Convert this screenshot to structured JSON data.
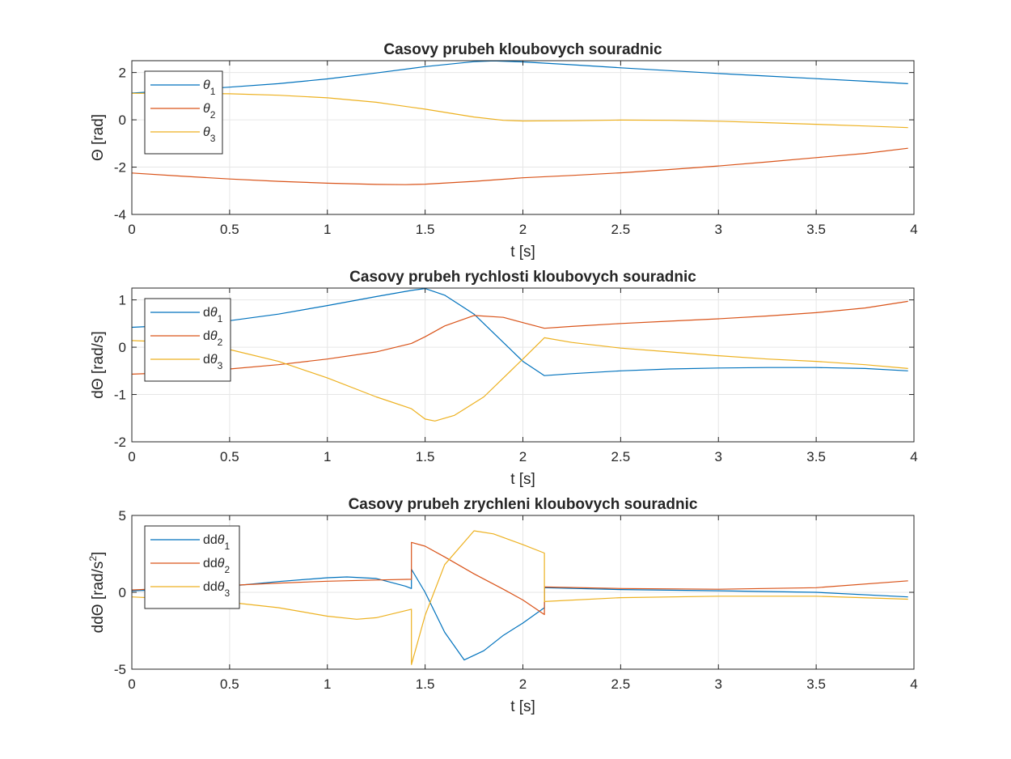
{
  "figure": {
    "colors": {
      "series1": "#0072BD",
      "series2": "#D95319",
      "series3": "#EDB120",
      "grid": "#e6e6e6",
      "axis": "#262626"
    }
  },
  "chart_data": [
    {
      "type": "line",
      "title": "Casovy prubeh kloubovych souradnic",
      "xlabel": "t [s]",
      "ylabel": "Θ [rad]",
      "ylabel_parts": {
        "prefix": "",
        "sym": "Θ",
        "unit": "[rad]",
        "sup": ""
      },
      "xlim": [
        0,
        4
      ],
      "ylim": [
        -4,
        2.5
      ],
      "xticks": [
        "0",
        "0.5",
        "1",
        "1.5",
        "2",
        "2.5",
        "3",
        "3.5",
        "4"
      ],
      "yticks": [
        "2",
        "0",
        "-2",
        "-4"
      ],
      "ytick_values": [
        2,
        0,
        -2,
        -4
      ],
      "grid": true,
      "legend_position": "top-left",
      "series": [
        {
          "name": "θ1",
          "name_prefix": "",
          "name_sub": "1",
          "color": "#0072BD",
          "x": [
            0,
            0.25,
            0.5,
            0.75,
            1.0,
            1.25,
            1.5,
            1.75,
            1.85,
            2.0,
            2.25,
            2.5,
            2.75,
            3.0,
            3.25,
            3.5,
            3.75,
            3.97
          ],
          "y": [
            1.13,
            1.25,
            1.38,
            1.53,
            1.73,
            1.98,
            2.25,
            2.46,
            2.49,
            2.45,
            2.33,
            2.2,
            2.08,
            1.96,
            1.85,
            1.74,
            1.63,
            1.53
          ]
        },
        {
          "name": "θ2",
          "name_prefix": "",
          "name_sub": "2",
          "color": "#D95319",
          "x": [
            0,
            0.25,
            0.5,
            0.75,
            1.0,
            1.25,
            1.4,
            1.5,
            1.75,
            2.0,
            2.25,
            2.5,
            2.75,
            3.0,
            3.25,
            3.5,
            3.75,
            3.97
          ],
          "y": [
            -2.25,
            -2.38,
            -2.5,
            -2.6,
            -2.68,
            -2.73,
            -2.74,
            -2.72,
            -2.6,
            -2.45,
            -2.35,
            -2.24,
            -2.1,
            -1.95,
            -1.78,
            -1.6,
            -1.42,
            -1.2
          ]
        },
        {
          "name": "θ3",
          "name_prefix": "",
          "name_sub": "3",
          "color": "#EDB120",
          "x": [
            0,
            0.25,
            0.5,
            0.75,
            1.0,
            1.25,
            1.5,
            1.75,
            1.9,
            2.0,
            2.25,
            2.5,
            2.75,
            3.0,
            3.25,
            3.5,
            3.75,
            3.97
          ],
          "y": [
            1.12,
            1.12,
            1.1,
            1.04,
            0.93,
            0.74,
            0.45,
            0.12,
            -0.02,
            -0.05,
            -0.04,
            -0.01,
            -0.02,
            -0.06,
            -0.12,
            -0.19,
            -0.26,
            -0.33
          ]
        }
      ]
    },
    {
      "type": "line",
      "title": "Casovy prubeh rychlosti kloubovych souradnic",
      "xlabel": "t [s]",
      "ylabel": "dΘ [rad/s]",
      "ylabel_parts": {
        "prefix": "d",
        "sym": "Θ",
        "unit": "[rad/s]",
        "sup": ""
      },
      "xlim": [
        0,
        4
      ],
      "ylim": [
        -2,
        1.25
      ],
      "xticks": [
        "0",
        "0.5",
        "1",
        "1.5",
        "2",
        "2.5",
        "3",
        "3.5",
        "4"
      ],
      "yticks": [
        "1",
        "0",
        "-1",
        "-2"
      ],
      "ytick_values": [
        1,
        0,
        -1,
        -2
      ],
      "grid": true,
      "legend_position": "top-left",
      "series": [
        {
          "name": "dθ1",
          "name_prefix": "d",
          "name_sub": "1",
          "color": "#0072BD",
          "x": [
            0,
            0.25,
            0.5,
            0.75,
            1.0,
            1.25,
            1.43,
            1.5,
            1.6,
            1.75,
            1.9,
            2.0,
            2.11,
            2.25,
            2.5,
            2.75,
            3.0,
            3.25,
            3.5,
            3.75,
            3.97
          ],
          "y": [
            0.42,
            0.47,
            0.56,
            0.7,
            0.88,
            1.07,
            1.2,
            1.24,
            1.1,
            0.7,
            0.1,
            -0.3,
            -0.6,
            -0.56,
            -0.5,
            -0.46,
            -0.44,
            -0.43,
            -0.43,
            -0.45,
            -0.5
          ]
        },
        {
          "name": "dθ2",
          "name_prefix": "d",
          "name_sub": "2",
          "color": "#D95319",
          "x": [
            0,
            0.25,
            0.5,
            0.75,
            1.0,
            1.25,
            1.43,
            1.5,
            1.6,
            1.75,
            1.9,
            2.0,
            2.11,
            2.25,
            2.5,
            2.75,
            3.0,
            3.25,
            3.5,
            3.75,
            3.97
          ],
          "y": [
            -0.57,
            -0.53,
            -0.46,
            -0.37,
            -0.25,
            -0.1,
            0.08,
            0.22,
            0.45,
            0.67,
            0.63,
            0.52,
            0.4,
            0.44,
            0.5,
            0.55,
            0.6,
            0.66,
            0.73,
            0.83,
            0.97
          ]
        },
        {
          "name": "dθ3",
          "name_prefix": "d",
          "name_sub": "3",
          "color": "#EDB120",
          "x": [
            0,
            0.25,
            0.5,
            0.75,
            1.0,
            1.25,
            1.43,
            1.5,
            1.55,
            1.65,
            1.8,
            2.0,
            2.11,
            2.25,
            2.5,
            2.75,
            3.0,
            3.25,
            3.5,
            3.75,
            3.97
          ],
          "y": [
            0.14,
            0.1,
            -0.05,
            -0.3,
            -0.65,
            -1.05,
            -1.3,
            -1.52,
            -1.56,
            -1.44,
            -1.05,
            -0.25,
            0.2,
            0.1,
            -0.02,
            -0.1,
            -0.18,
            -0.25,
            -0.3,
            -0.37,
            -0.45
          ]
        }
      ]
    },
    {
      "type": "line",
      "title": "Casovy prubeh zrychleni kloubovych souradnic",
      "xlabel": "t [s]",
      "ylabel": "ddΘ [rad/s2]",
      "ylabel_parts": {
        "prefix": "dd",
        "sym": "Θ",
        "unit": "[rad/s",
        "sup": "2",
        "close": "]"
      },
      "xlim": [
        0,
        4
      ],
      "ylim": [
        -5,
        5
      ],
      "xticks": [
        "0",
        "0.5",
        "1",
        "1.5",
        "2",
        "2.5",
        "3",
        "3.5",
        "4"
      ],
      "yticks": [
        "5",
        "0",
        "-5"
      ],
      "ytick_values": [
        5,
        0,
        -5
      ],
      "grid": true,
      "legend_position": "top-left",
      "series": [
        {
          "name": "ddθ1",
          "name_prefix": "dd",
          "name_sub": "1",
          "color": "#0072BD",
          "x": [
            0,
            0.25,
            0.5,
            0.75,
            1.0,
            1.1,
            1.25,
            1.4,
            1.43,
            1.43,
            1.5,
            1.6,
            1.7,
            1.8,
            1.9,
            2.0,
            2.11,
            2.11,
            2.5,
            3.0,
            3.5,
            3.97
          ],
          "y": [
            0.1,
            0.2,
            0.4,
            0.7,
            0.95,
            1.0,
            0.9,
            0.4,
            0.25,
            1.5,
            0.0,
            -2.6,
            -4.4,
            -3.8,
            -2.8,
            -2.0,
            -1.0,
            0.3,
            0.18,
            0.1,
            0.0,
            -0.3
          ]
        },
        {
          "name": "ddθ2",
          "name_prefix": "dd",
          "name_sub": "2",
          "color": "#D95319",
          "x": [
            0,
            0.25,
            0.5,
            0.75,
            1.0,
            1.25,
            1.43,
            1.43,
            1.5,
            1.6,
            1.75,
            1.9,
            2.0,
            2.11,
            2.11,
            2.5,
            3.0,
            3.5,
            3.97
          ],
          "y": [
            0.15,
            0.3,
            0.45,
            0.6,
            0.72,
            0.8,
            0.85,
            3.25,
            3.0,
            2.3,
            1.2,
            0.2,
            -0.5,
            -1.45,
            0.35,
            0.25,
            0.2,
            0.3,
            0.75
          ]
        },
        {
          "name": "ddθ3",
          "name_prefix": "dd",
          "name_sub": "3",
          "color": "#EDB120",
          "x": [
            0,
            0.25,
            0.5,
            0.75,
            1.0,
            1.15,
            1.25,
            1.43,
            1.43,
            1.5,
            1.6,
            1.75,
            1.85,
            2.0,
            2.11,
            2.11,
            2.5,
            3.0,
            3.5,
            3.97
          ],
          "y": [
            -0.3,
            -0.45,
            -0.65,
            -1.0,
            -1.55,
            -1.75,
            -1.65,
            -1.1,
            -4.7,
            -1.5,
            1.8,
            4.0,
            3.8,
            3.1,
            2.55,
            -0.6,
            -0.35,
            -0.25,
            -0.25,
            -0.45
          ]
        }
      ]
    }
  ]
}
